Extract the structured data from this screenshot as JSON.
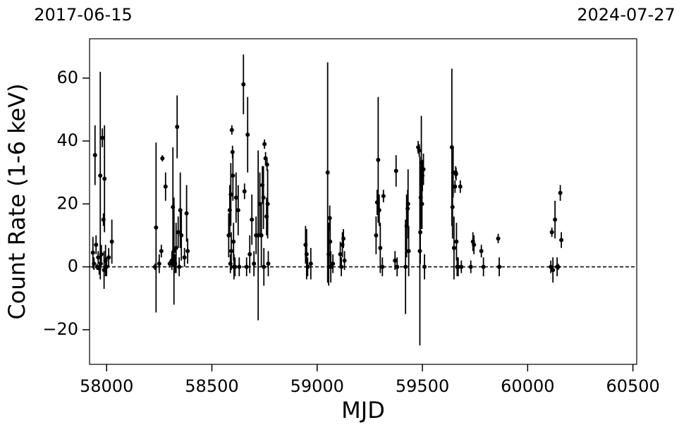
{
  "chart_data": {
    "type": "errorbar",
    "annotations": [
      "2017-06-15",
      "2024-07-27"
    ],
    "xlabel": "MJD",
    "ylabel": "Count Rate (1-6 keV)",
    "xlim": [
      57919,
      60518
    ],
    "ylim": [
      -31,
      72.5
    ],
    "xticks": [
      58000,
      58500,
      59000,
      59500,
      60000,
      60500
    ],
    "yticks": [
      {
        "value": -20,
        "label": "−20"
      },
      0,
      20,
      40,
      60
    ],
    "hline": 0,
    "color": "#000000",
    "x": [
      57935,
      57940,
      57945,
      57950,
      57955,
      57960,
      57965,
      57970,
      57975,
      57980,
      57985,
      57990,
      57995,
      58000,
      58010,
      58025,
      57988,
      57972,
      58230,
      58235,
      58250,
      58260,
      58265,
      58280,
      58300,
      58310,
      58315,
      58320,
      58325,
      58330,
      58335,
      58340,
      58345,
      58350,
      58355,
      58370,
      58380,
      58385,
      58580,
      58585,
      58588,
      58590,
      58592,
      58595,
      58598,
      58600,
      58603,
      58605,
      58610,
      58615,
      58625,
      58630,
      58650,
      58655,
      58665,
      58670,
      58680,
      58690,
      58700,
      58710,
      58720,
      58728,
      58735,
      58740,
      58745,
      58750,
      58755,
      58760,
      58762,
      58765,
      58768,
      58747,
      58945,
      58950,
      58955,
      58970,
      59050,
      59055,
      59060,
      59062,
      59065,
      59075,
      59110,
      59115,
      59120,
      59125,
      59130,
      59280,
      59285,
      59290,
      59295,
      59300,
      59310,
      59315,
      59370,
      59375,
      59380,
      59420,
      59425,
      59430,
      59432,
      59435,
      59480,
      59485,
      59488,
      59490,
      59492,
      59495,
      59498,
      59500,
      59505,
      59510,
      59640,
      59643,
      59646,
      59650,
      59655,
      59658,
      59660,
      59662,
      59665,
      59670,
      59680,
      59685,
      59730,
      59740,
      59745,
      59780,
      59790,
      59860,
      59865,
      60110,
      60115,
      60120,
      60130,
      60140,
      60145,
      60155,
      60160
    ],
    "values": [
      4.5,
      1,
      35.5,
      7,
      0,
      3,
      -0.5,
      29,
      4,
      41,
      15,
      28,
      2,
      0,
      3,
      8,
      -1,
      1,
      0,
      12.5,
      1,
      5,
      34.5,
      25.5,
      1,
      2,
      19,
      5,
      1,
      6,
      44.5,
      11,
      0,
      18,
      10,
      3,
      17,
      5,
      10,
      18,
      1,
      23,
      5,
      43.5,
      36.5,
      29,
      8,
      0,
      0,
      22,
      18,
      0,
      58,
      24,
      0,
      42,
      4,
      15,
      1,
      10,
      10,
      20,
      10,
      26,
      22,
      39,
      34.5,
      16,
      32.5,
      20,
      1,
      0,
      7,
      4,
      0,
      1,
      30,
      4,
      15.5,
      8,
      0,
      1,
      4,
      0,
      7,
      9,
      2,
      10,
      20.5,
      34,
      18,
      6,
      0,
      22.5,
      2,
      30.5,
      0,
      0,
      13,
      18.5,
      20,
      5,
      38,
      37,
      5,
      11,
      22,
      33,
      20,
      29,
      31,
      0,
      38,
      19,
      30,
      6,
      25.5,
      30,
      29.5,
      8,
      0,
      0,
      25.5,
      0,
      0,
      8,
      7,
      5,
      0,
      9,
      0,
      0,
      11,
      -1,
      15,
      0,
      0,
      23.5,
      8.5
    ],
    "errors": [
      5,
      2,
      9.5,
      3,
      1,
      2,
      2,
      33,
      3,
      3,
      2,
      17,
      5,
      3,
      3,
      7,
      6,
      1,
      1,
      27,
      3,
      2,
      1,
      4.5,
      1,
      3,
      19,
      17,
      3,
      8,
      10,
      5,
      3,
      12,
      8,
      3,
      9,
      4,
      7,
      8,
      3,
      10,
      6,
      1.5,
      2,
      8,
      6,
      4,
      3,
      8,
      8,
      3,
      9.5,
      2.5,
      3,
      12,
      6,
      8,
      4,
      6,
      27,
      10,
      10,
      6,
      10,
      1.5,
      2,
      6,
      2,
      11,
      4,
      6,
      6,
      8,
      3,
      5,
      35,
      10,
      4,
      8,
      5,
      3,
      4,
      3,
      4,
      3,
      3,
      6,
      4,
      20,
      5,
      8,
      3,
      2,
      3,
      5,
      3,
      15,
      10,
      6,
      11,
      8,
      2,
      2,
      30,
      10,
      10,
      15,
      8,
      5,
      5,
      4,
      25,
      10,
      8,
      10,
      2,
      2,
      2,
      6,
      3,
      3,
      2,
      2,
      2,
      3,
      3,
      2,
      3,
      1.5,
      3,
      2,
      1.5,
      4,
      6,
      3,
      1,
      2.5,
      2.5
    ]
  }
}
